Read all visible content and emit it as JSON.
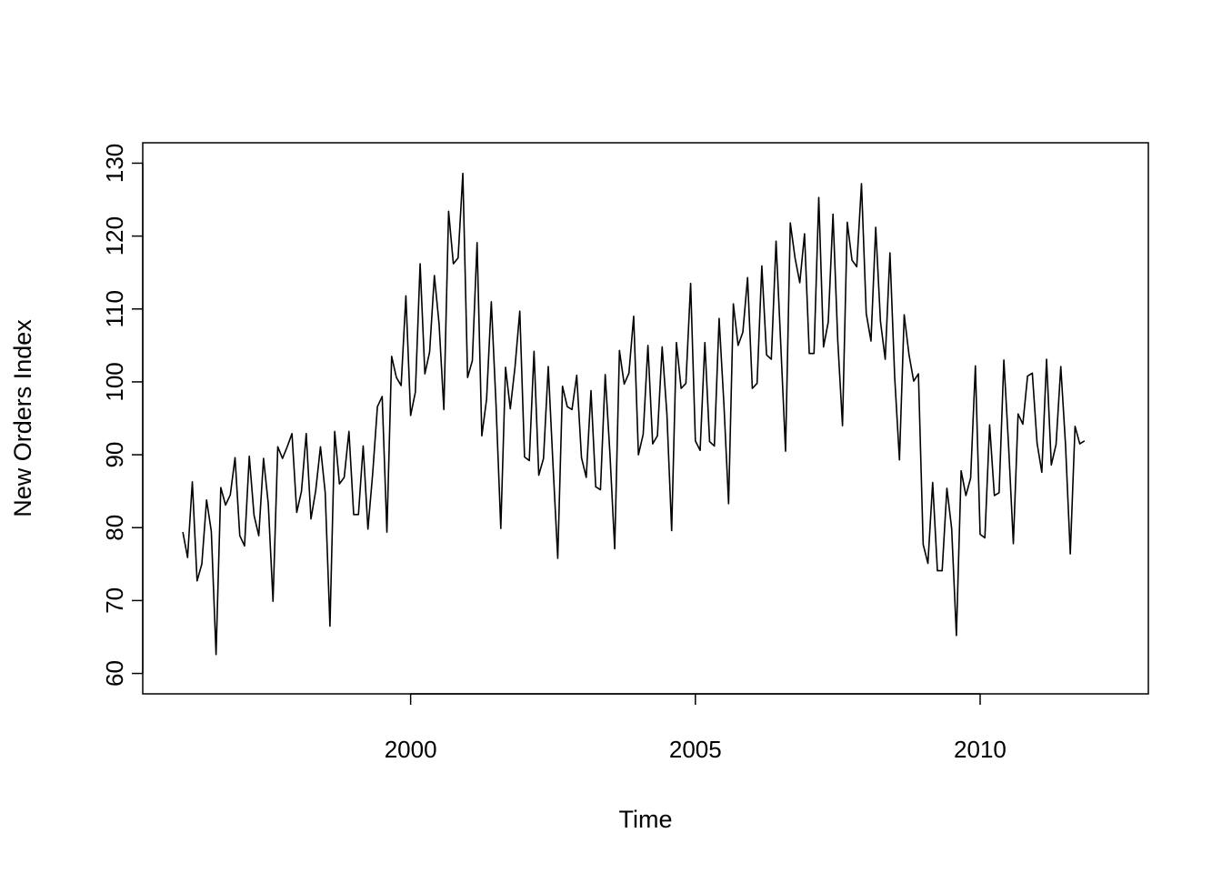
{
  "chart_data": {
    "type": "line",
    "title": "",
    "xlabel": "Time",
    "ylabel": "New Orders Index",
    "xlim": [
      1995.95,
      2012.3
    ],
    "ylim": [
      60,
      130
    ],
    "x_ticks": [
      2000,
      2005,
      2010
    ],
    "y_ticks": [
      60,
      70,
      80,
      90,
      100,
      110,
      120,
      130
    ],
    "x_start": 1996.0,
    "frequency": 12,
    "grid": false,
    "legend": "none",
    "line_color": "#000000",
    "series": [
      {
        "values": [
          79.4,
          75.9,
          86.3,
          72.7,
          75.0,
          83.8,
          79.5,
          62.6,
          85.5,
          83.1,
          84.5,
          89.6,
          78.9,
          77.5,
          89.8,
          81.7,
          78.9,
          89.5,
          83.3,
          69.9,
          91.1,
          89.5,
          91.1,
          92.9,
          82.1,
          85.0,
          92.9,
          81.2,
          85.1,
          91.1,
          84.8,
          66.5,
          93.2,
          86.0,
          86.9,
          93.2,
          81.8,
          81.8,
          91.2,
          79.8,
          87.4,
          96.6,
          98.0,
          79.4,
          103.5,
          100.6,
          99.5,
          111.8,
          95.4,
          98.6,
          116.2,
          101.1,
          104.1,
          114.6,
          107.9,
          96.2,
          123.4,
          116.2,
          117.0,
          128.6,
          100.6,
          102.9,
          119.1,
          92.6,
          97.6,
          111.0,
          96.8,
          79.9,
          102.0,
          96.3,
          102.1,
          109.7,
          89.7,
          89.2,
          104.2,
          87.2,
          89.5,
          102.1,
          88.6,
          75.8,
          99.4,
          96.6,
          96.2,
          100.9,
          89.6,
          86.9,
          98.8,
          85.6,
          85.2,
          101.0,
          90.1,
          77.1,
          104.3,
          99.7,
          101.2,
          109.0,
          90.0,
          92.8,
          105.0,
          91.5,
          92.6,
          104.8,
          95.6,
          79.6,
          105.4,
          99.1,
          99.8,
          113.5,
          91.9,
          90.6,
          105.4,
          91.8,
          91.2,
          108.7,
          97.1,
          83.3,
          110.7,
          105.0,
          106.8,
          114.3,
          99.1,
          99.8,
          115.9,
          103.7,
          103.1,
          119.3,
          105.0,
          90.5,
          121.8,
          117.0,
          113.6,
          120.3,
          103.9,
          103.9,
          125.3,
          104.8,
          108.2,
          123.0,
          105.7,
          94.0,
          121.9,
          116.7,
          115.8,
          127.2,
          109.4,
          105.6,
          121.2,
          108.3,
          103.1,
          117.7,
          100.6,
          89.3,
          109.2,
          103.8,
          100.1,
          101.1,
          77.7,
          75.1,
          86.2,
          74.1,
          74.1,
          85.4,
          79.9,
          65.2,
          87.8,
          84.4,
          86.8,
          102.2,
          79.1,
          78.6,
          94.1,
          84.4,
          84.8,
          103.0,
          91.2,
          77.8,
          95.6,
          94.2,
          100.8,
          101.2,
          91.6,
          87.6,
          103.1,
          88.6,
          91.4,
          102.1,
          91.3,
          76.4,
          93.9,
          91.5,
          91.9
        ]
      }
    ]
  }
}
